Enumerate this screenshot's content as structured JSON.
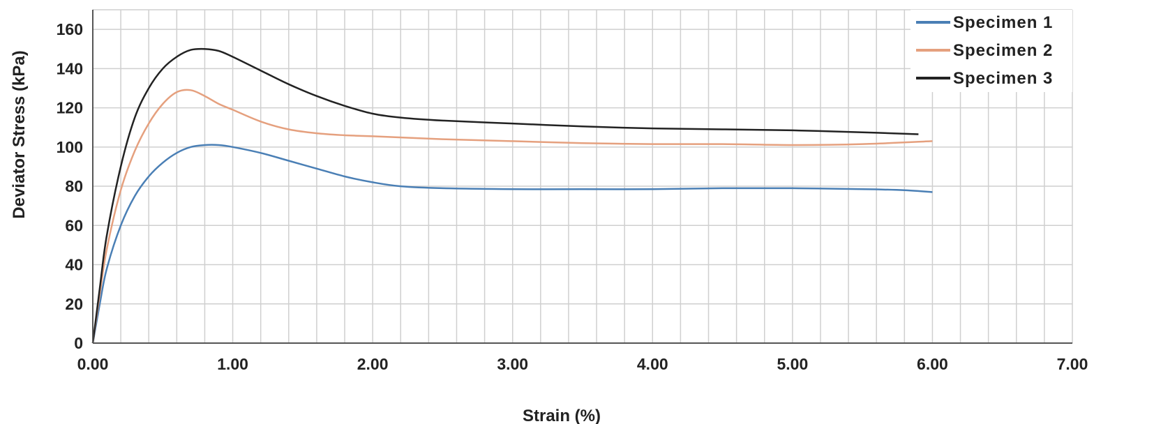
{
  "chart_data": {
    "type": "line",
    "xlabel": "Strain (%)",
    "ylabel": "Deviator Stress (kPa)",
    "xlim": [
      0,
      7
    ],
    "ylim": [
      0,
      170
    ],
    "x_ticks": [
      "0.00",
      "1.00",
      "2.00",
      "3.00",
      "4.00",
      "5.00",
      "6.00",
      "7.00"
    ],
    "y_ticks": [
      "0",
      "20",
      "40",
      "60",
      "80",
      "100",
      "120",
      "140",
      "160"
    ],
    "x_tick_values": [
      0,
      1,
      2,
      3,
      4,
      5,
      6,
      7
    ],
    "y_tick_values": [
      0,
      20,
      40,
      60,
      80,
      100,
      120,
      140,
      160
    ],
    "x_minor_step": 0.2,
    "y_minor_step": 20,
    "grid": true,
    "legend_position": "top-right",
    "series": [
      {
        "name": "Specimen 1",
        "color": "#4a7fb5",
        "points": [
          [
            0,
            0
          ],
          [
            0.05,
            20
          ],
          [
            0.1,
            38
          ],
          [
            0.2,
            60
          ],
          [
            0.3,
            75
          ],
          [
            0.4,
            85
          ],
          [
            0.5,
            92
          ],
          [
            0.6,
            97
          ],
          [
            0.7,
            100
          ],
          [
            0.8,
            101
          ],
          [
            0.9,
            101
          ],
          [
            1.0,
            100
          ],
          [
            1.2,
            97
          ],
          [
            1.4,
            93
          ],
          [
            1.6,
            89
          ],
          [
            1.8,
            85
          ],
          [
            2.0,
            82
          ],
          [
            2.2,
            80
          ],
          [
            2.5,
            79
          ],
          [
            3.0,
            78.5
          ],
          [
            3.5,
            78.5
          ],
          [
            4.0,
            78.5
          ],
          [
            4.5,
            79
          ],
          [
            5.0,
            79
          ],
          [
            5.5,
            78.5
          ],
          [
            5.8,
            78
          ],
          [
            6.0,
            77
          ]
        ]
      },
      {
        "name": "Specimen 2",
        "color": "#e5a07e",
        "points": [
          [
            0,
            0
          ],
          [
            0.05,
            25
          ],
          [
            0.1,
            48
          ],
          [
            0.2,
            78
          ],
          [
            0.3,
            98
          ],
          [
            0.4,
            112
          ],
          [
            0.5,
            122
          ],
          [
            0.6,
            128
          ],
          [
            0.7,
            129
          ],
          [
            0.8,
            126
          ],
          [
            0.9,
            122
          ],
          [
            1.0,
            119
          ],
          [
            1.2,
            113
          ],
          [
            1.4,
            109
          ],
          [
            1.6,
            107
          ],
          [
            1.8,
            106
          ],
          [
            2.0,
            105.5
          ],
          [
            2.5,
            104
          ],
          [
            3.0,
            103
          ],
          [
            3.5,
            102
          ],
          [
            4.0,
            101.5
          ],
          [
            4.5,
            101.5
          ],
          [
            5.0,
            101
          ],
          [
            5.5,
            101.5
          ],
          [
            6.0,
            103
          ]
        ]
      },
      {
        "name": "Specimen 3",
        "color": "#222222",
        "points": [
          [
            0,
            0
          ],
          [
            0.05,
            28
          ],
          [
            0.1,
            55
          ],
          [
            0.2,
            90
          ],
          [
            0.3,
            115
          ],
          [
            0.4,
            130
          ],
          [
            0.5,
            140
          ],
          [
            0.6,
            146
          ],
          [
            0.7,
            149.5
          ],
          [
            0.8,
            150
          ],
          [
            0.9,
            149
          ],
          [
            1.0,
            146
          ],
          [
            1.2,
            139
          ],
          [
            1.4,
            132
          ],
          [
            1.6,
            126
          ],
          [
            1.8,
            121
          ],
          [
            2.0,
            117
          ],
          [
            2.2,
            115
          ],
          [
            2.5,
            113.5
          ],
          [
            3.0,
            112
          ],
          [
            3.5,
            110.5
          ],
          [
            4.0,
            109.5
          ],
          [
            4.5,
            109
          ],
          [
            5.0,
            108.5
          ],
          [
            5.5,
            107.5
          ],
          [
            5.9,
            106.5
          ]
        ]
      }
    ]
  }
}
